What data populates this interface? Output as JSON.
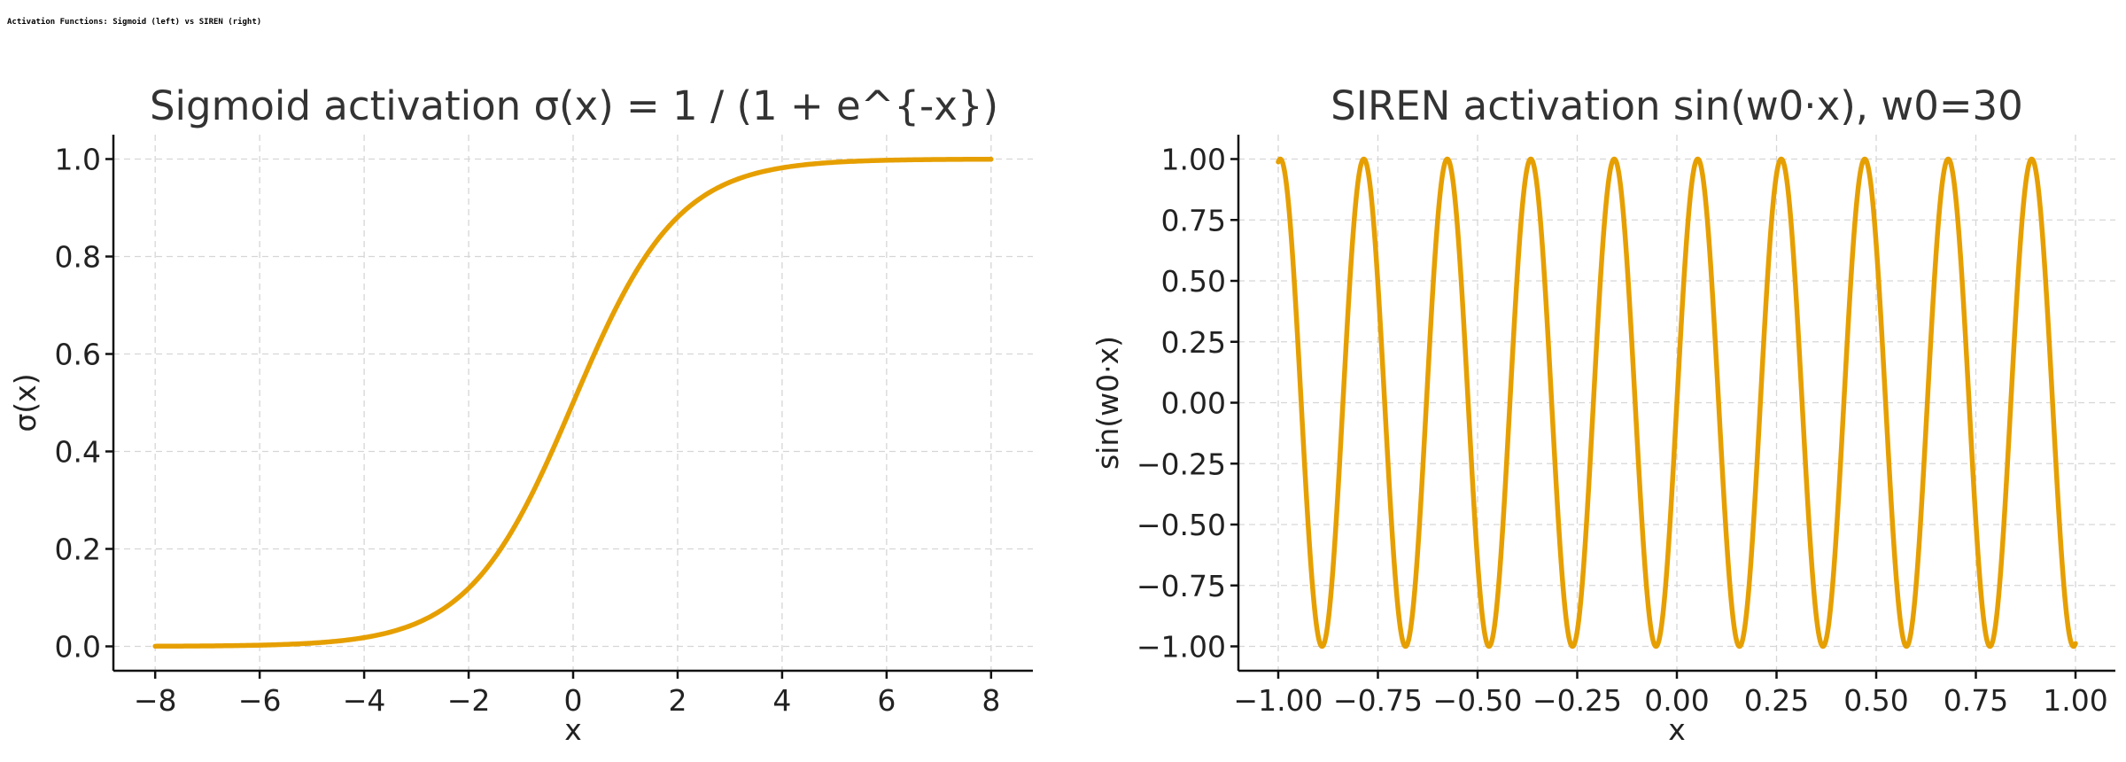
{
  "figure_title": "Activation Functions: Sigmoid (left) vs SIREN (right)",
  "colors": {
    "line": "#e69f00",
    "grid": "#d6d6d6",
    "axis": "#111111",
    "text": "#222222"
  },
  "chart_data": [
    {
      "type": "line",
      "title": "Sigmoid activation σ(x) = 1 / (1 + e^{-x})",
      "xlabel": "x",
      "ylabel": "σ(x)",
      "xlim": [
        -8.8,
        8.8
      ],
      "ylim": [
        -0.05,
        1.05
      ],
      "grid": true,
      "xticks": [
        -8,
        -6,
        -4,
        -2,
        0,
        2,
        4,
        6,
        8
      ],
      "xtick_labels": [
        "−8",
        "−6",
        "−4",
        "−2",
        "0",
        "2",
        "4",
        "6",
        "8"
      ],
      "yticks": [
        0.0,
        0.2,
        0.4,
        0.6,
        0.8,
        1.0
      ],
      "ytick_labels": [
        "0.0",
        "0.2",
        "0.4",
        "0.6",
        "0.8",
        "1.0"
      ],
      "series": [
        {
          "color": "#e69f00",
          "x": [
            -8,
            -7,
            -6,
            -5,
            -4,
            -3.5,
            -3,
            -2.5,
            -2,
            -1.5,
            -1,
            -0.5,
            0,
            0.5,
            1,
            1.5,
            2,
            2.5,
            3,
            3.5,
            4,
            5,
            6,
            7,
            8
          ],
          "y": [
            0.0003,
            0.0009,
            0.0025,
            0.0067,
            0.018,
            0.029,
            0.047,
            0.076,
            0.119,
            0.182,
            0.269,
            0.378,
            0.5,
            0.622,
            0.731,
            0.818,
            0.881,
            0.924,
            0.953,
            0.971,
            0.982,
            0.9933,
            0.9975,
            0.9991,
            0.9997
          ]
        }
      ]
    },
    {
      "type": "line",
      "title": "SIREN activation sin(w0·x), w0=30",
      "xlabel": "x",
      "ylabel": "sin(w0·x)",
      "xlim": [
        -1.1,
        1.1
      ],
      "ylim": [
        -1.1,
        1.1
      ],
      "grid": true,
      "xticks": [
        -1.0,
        -0.75,
        -0.5,
        -0.25,
        0.0,
        0.25,
        0.5,
        0.75,
        1.0
      ],
      "xtick_labels": [
        "−1.00",
        "−0.75",
        "−0.50",
        "−0.25",
        "0.00",
        "0.25",
        "0.50",
        "0.75",
        "1.00"
      ],
      "yticks": [
        -1.0,
        -0.75,
        -0.5,
        -0.25,
        0.0,
        0.25,
        0.5,
        0.75,
        1.0
      ],
      "ytick_labels": [
        "−1.00",
        "−0.75",
        "−0.50",
        "−0.25",
        "0.00",
        "0.25",
        "0.50",
        "0.75",
        "1.00"
      ],
      "series": [
        {
          "color": "#e69f00",
          "x": [
            -1.0,
            -0.9948,
            -0.9425,
            -0.8901,
            -0.8377,
            -0.7854,
            -0.733,
            -0.6807,
            -0.6283,
            -0.576,
            -0.5236,
            -0.4712,
            -0.4189,
            -0.3665,
            -0.3142,
            -0.2618,
            -0.2094,
            -0.1571,
            -0.1047,
            -0.0524,
            0.0,
            0.0524,
            0.1047,
            0.1571,
            0.2094,
            0.2618,
            0.3142,
            0.3665,
            0.4189,
            0.4712,
            0.5236,
            0.576,
            0.6283,
            0.6807,
            0.733,
            0.7854,
            0.8377,
            0.8901,
            0.9425,
            0.9948,
            1.0
          ],
          "y": [
            0.988,
            1.0,
            0.0,
            -1.0,
            0.0,
            1.0,
            0.0,
            -1.0,
            0.0,
            1.0,
            0.0,
            -1.0,
            0.0,
            1.0,
            0.0,
            -1.0,
            0.0,
            1.0,
            0.0,
            -1.0,
            0.0,
            1.0,
            0.0,
            -1.0,
            0.0,
            1.0,
            0.0,
            -1.0,
            0.0,
            1.0,
            0.0,
            -1.0,
            0.0,
            1.0,
            0.0,
            -1.0,
            0.0,
            1.0,
            0.0,
            -1.0,
            -0.988
          ]
        }
      ]
    }
  ]
}
